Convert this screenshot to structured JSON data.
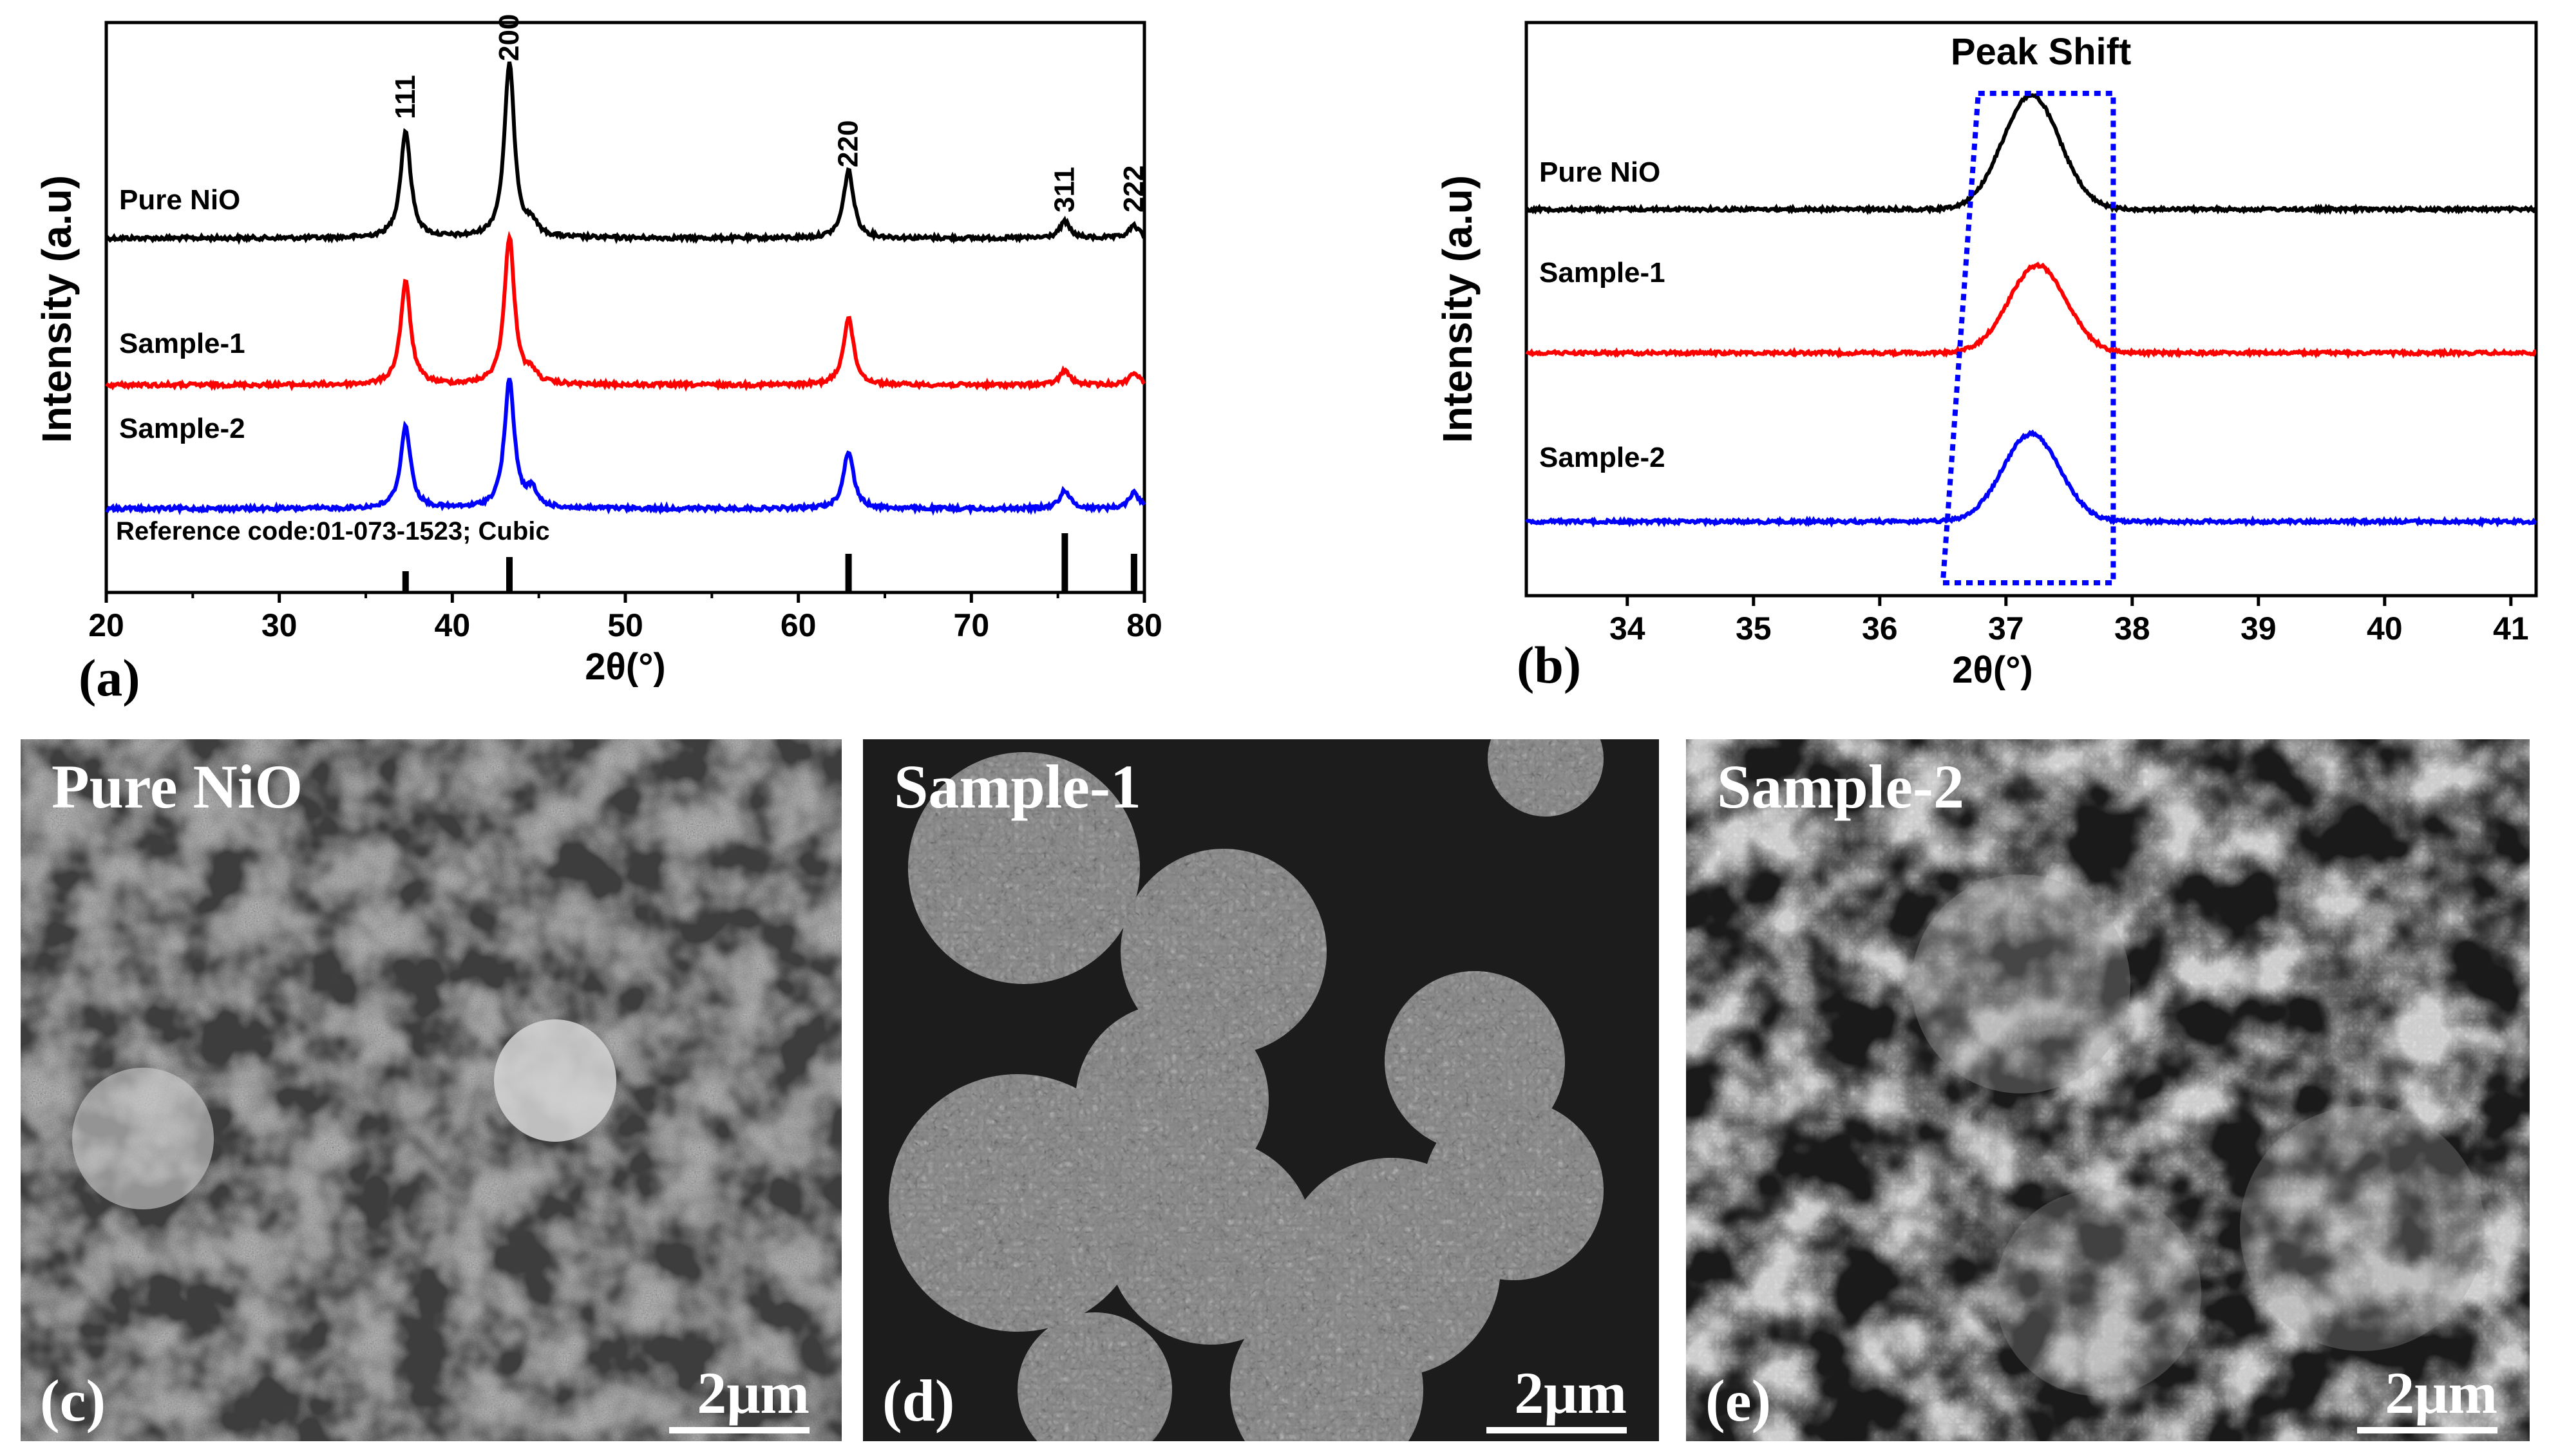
{
  "chart_data": [
    {
      "type": "line",
      "panel_label": "(a)",
      "xlabel": "2θ(°)",
      "ylabel": "Intensity (a.u)",
      "xlim": [
        20,
        80
      ],
      "xticks": [
        20,
        30,
        40,
        50,
        60,
        70,
        80
      ],
      "peaks": [
        {
          "x": 37.3,
          "label": "111"
        },
        {
          "x": 43.3,
          "label": "200"
        },
        {
          "x": 62.9,
          "label": "220"
        },
        {
          "x": 75.4,
          "label": "311"
        },
        {
          "x": 79.4,
          "label": "222"
        }
      ],
      "series": [
        {
          "name": "Pure NiO",
          "color": "#000000",
          "peak_x": [
            37.3,
            43.3,
            44.6,
            62.9,
            75.4,
            79.4
          ],
          "peak_height": [
            0.52,
            0.85,
            0.06,
            0.33,
            0.08,
            0.06
          ]
        },
        {
          "name": "Sample-1",
          "color": "#ff0000",
          "peak_x": [
            37.3,
            43.3,
            44.6,
            62.9,
            75.4,
            79.4
          ],
          "peak_height": [
            0.5,
            0.72,
            0.05,
            0.33,
            0.07,
            0.06
          ]
        },
        {
          "name": "Sample-2",
          "color": "#0000ff",
          "peak_x": [
            37.3,
            43.3,
            44.6,
            62.9,
            75.4,
            79.4
          ],
          "peak_height": [
            0.4,
            0.62,
            0.08,
            0.28,
            0.09,
            0.08
          ]
        }
      ],
      "reference": {
        "label": "Reference code:01-073-1523; Cubic",
        "x": [
          37.3,
          43.3,
          62.9,
          75.4,
          79.4
        ],
        "height": [
          0.33,
          0.55,
          0.6,
          0.92,
          0.6
        ]
      }
    },
    {
      "type": "line",
      "panel_label": "(b)",
      "title": "Peak Shift",
      "xlabel": "2θ(°)",
      "ylabel": "Intensity (a.u)",
      "xlim": [
        33.2,
        41.2
      ],
      "xticks": [
        34,
        35,
        36,
        37,
        38,
        39,
        40,
        41
      ],
      "series": [
        {
          "name": "Pure NiO",
          "color": "#000000",
          "peak_x": 37.2,
          "peak_height": 0.52
        },
        {
          "name": "Sample-1",
          "color": "#ff0000",
          "peak_x": 37.25,
          "peak_height": 0.4
        },
        {
          "name": "Sample-2",
          "color": "#0000ff",
          "peak_x": 37.2,
          "peak_height": 0.4
        }
      ],
      "highlight": {
        "x": [
          36.5,
          37.85
        ],
        "color": "#0000ff"
      }
    }
  ],
  "sem_images": [
    {
      "title": "Pure NiO",
      "panel_label": "(c)",
      "scale": "2μm"
    },
    {
      "title": "Sample-1",
      "panel_label": "(d)",
      "scale": "2μm"
    },
    {
      "title": "Sample-2",
      "panel_label": "(e)",
      "scale": "2μm"
    }
  ]
}
